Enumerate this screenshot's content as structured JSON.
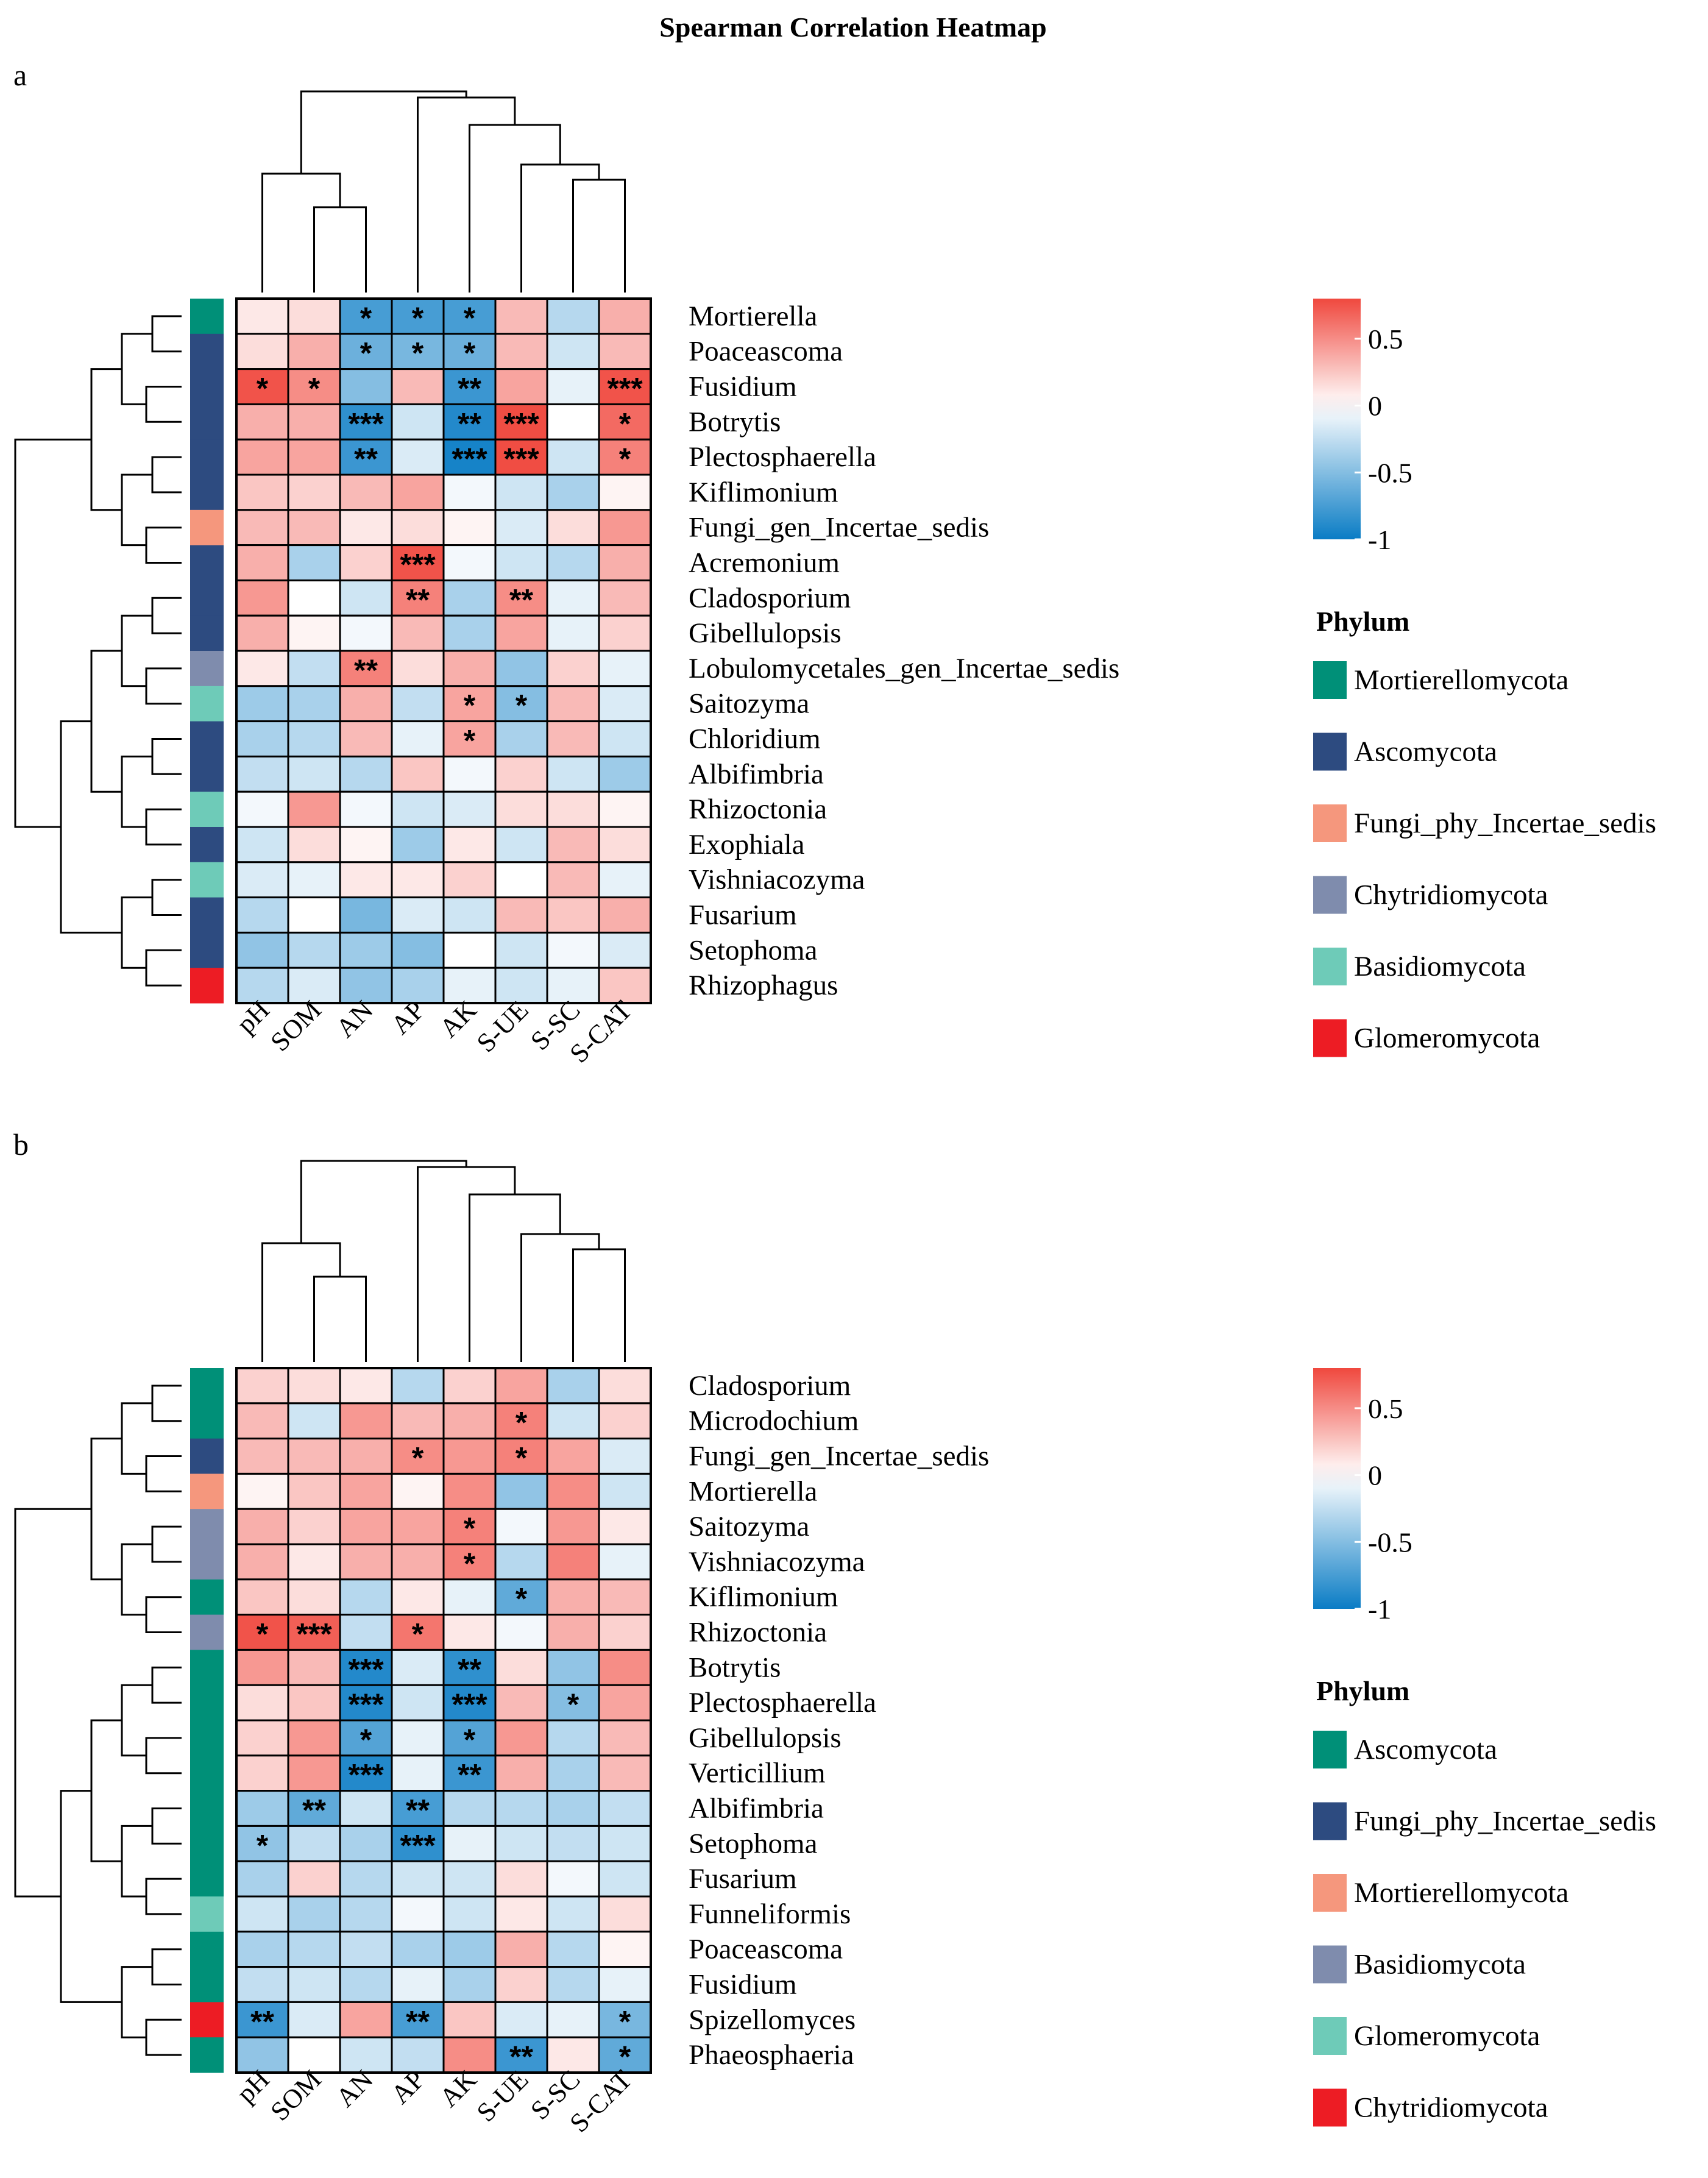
{
  "chart_data": {
    "type": "heatmap",
    "title": "Spearman Correlation Heatmap",
    "color_scale": {
      "min": -1,
      "max": 0.8,
      "ticks": [
        0.5,
        0,
        -0.5,
        -1
      ],
      "tick_labels": [
        "0.5",
        "0",
        "-0.5",
        "-1"
      ],
      "low_color": "#0a7cc5",
      "mid_color": "#ffffff",
      "high_color": "#f0483e"
    },
    "legend_title": "Phylum",
    "panels": [
      {
        "label": "a",
        "columns": [
          "pH",
          "SOM",
          "AN",
          "AP",
          "AK",
          "S-UE",
          "S-SC",
          "S-CAT"
        ],
        "rows": [
          "Mortierella",
          "Poaceascoma",
          "Fusidium",
          "Botrytis",
          "Plectosphaerella",
          "Kiflimonium",
          "Fungi_gen_Incertae_sedis",
          "Acremonium",
          "Cladosporium",
          "Gibellulopsis",
          "Lobulomycetales_gen_Incertae_sedis",
          "Saitozyma",
          "Chloridium",
          "Albifimbria",
          "Rhizoctonia",
          "Exophiala",
          "Vishniacozyma",
          "Fusarium",
          "Setophoma",
          "Rhizophagus"
        ],
        "row_phylum": [
          0,
          1,
          1,
          1,
          1,
          1,
          2,
          1,
          1,
          1,
          3,
          4,
          1,
          1,
          4,
          1,
          4,
          1,
          1,
          5
        ],
        "phyla": [
          {
            "name": "Mortierellomycota",
            "color": "#009078"
          },
          {
            "name": "Ascomycota",
            "color": "#2d4b80"
          },
          {
            "name": "Fungi_phy_Incertae_sedis",
            "color": "#f5977d"
          },
          {
            "name": "Chytridiomycota",
            "color": "#7f8cad"
          },
          {
            "name": "Basidiomycota",
            "color": "#6ecbb8"
          },
          {
            "name": "Glomeromycota",
            "color": "#ed1c24"
          }
        ],
        "values": [
          [
            0.1,
            0.15,
            -0.75,
            -0.75,
            -0.75,
            0.3,
            -0.3,
            0.35
          ],
          [
            0.15,
            0.35,
            -0.6,
            -0.55,
            -0.6,
            0.3,
            -0.2,
            0.3
          ],
          [
            0.75,
            0.5,
            -0.5,
            0.3,
            -0.8,
            0.4,
            -0.1,
            0.75
          ],
          [
            0.35,
            0.35,
            -0.85,
            -0.2,
            -0.9,
            0.78,
            0.0,
            0.65
          ],
          [
            0.4,
            0.4,
            -0.8,
            -0.15,
            -0.95,
            0.78,
            -0.2,
            0.55
          ],
          [
            0.25,
            0.2,
            0.3,
            0.4,
            -0.05,
            -0.2,
            -0.35,
            0.05
          ],
          [
            0.3,
            0.3,
            0.1,
            0.15,
            0.05,
            -0.15,
            0.15,
            0.45
          ],
          [
            0.35,
            -0.35,
            0.2,
            0.75,
            -0.05,
            -0.2,
            -0.3,
            0.35
          ],
          [
            0.45,
            0.0,
            -0.2,
            0.55,
            -0.35,
            0.5,
            -0.1,
            0.3
          ],
          [
            0.35,
            0.05,
            -0.05,
            0.3,
            -0.35,
            0.4,
            -0.1,
            0.2
          ],
          [
            0.1,
            -0.25,
            0.55,
            0.15,
            0.35,
            -0.45,
            0.2,
            -0.1
          ],
          [
            -0.4,
            -0.35,
            0.35,
            -0.25,
            0.4,
            -0.5,
            0.3,
            -0.15
          ],
          [
            -0.35,
            -0.3,
            0.3,
            -0.1,
            0.4,
            -0.35,
            0.3,
            -0.2
          ],
          [
            -0.25,
            -0.2,
            -0.3,
            0.25,
            -0.05,
            0.2,
            -0.2,
            -0.4
          ],
          [
            -0.05,
            0.45,
            -0.05,
            -0.2,
            -0.15,
            0.15,
            0.15,
            0.05
          ],
          [
            -0.2,
            0.15,
            0.05,
            -0.4,
            0.1,
            -0.2,
            0.3,
            0.15
          ],
          [
            -0.15,
            -0.1,
            0.1,
            0.1,
            0.2,
            0.0,
            0.3,
            -0.1
          ],
          [
            -0.3,
            0.0,
            -0.55,
            -0.15,
            -0.2,
            0.3,
            0.25,
            0.35
          ],
          [
            -0.45,
            -0.3,
            -0.4,
            -0.5,
            0.0,
            -0.2,
            -0.05,
            -0.15
          ],
          [
            -0.3,
            -0.15,
            -0.45,
            -0.35,
            -0.1,
            -0.2,
            -0.1,
            0.25
          ]
        ],
        "stars": [
          [
            "",
            "",
            "*",
            "*",
            "*",
            "",
            "",
            ""
          ],
          [
            "",
            "",
            "*",
            "*",
            "*",
            "",
            "",
            ""
          ],
          [
            "*",
            "*",
            "",
            "",
            "**",
            "",
            "",
            "***"
          ],
          [
            "",
            "",
            "***",
            "",
            "**",
            "***",
            "",
            "*"
          ],
          [
            "",
            "",
            "**",
            "",
            "***",
            "***",
            "",
            "*"
          ],
          [
            "",
            "",
            "",
            "",
            "",
            "",
            "",
            ""
          ],
          [
            "",
            "",
            "",
            "",
            "",
            "",
            "",
            ""
          ],
          [
            "",
            "",
            "",
            "***",
            "",
            "",
            "",
            ""
          ],
          [
            "",
            "",
            "",
            "**",
            "",
            "**",
            "",
            ""
          ],
          [
            "",
            "",
            "",
            "",
            "",
            "",
            "",
            ""
          ],
          [
            "",
            "",
            "**",
            "",
            "",
            "",
            "",
            ""
          ],
          [
            "",
            "",
            "",
            "",
            "*",
            "*",
            "",
            ""
          ],
          [
            "",
            "",
            "",
            "",
            "*",
            "",
            "",
            ""
          ],
          [
            "",
            "",
            "",
            "",
            "",
            "",
            "",
            ""
          ],
          [
            "",
            "",
            "",
            "",
            "",
            "",
            "",
            ""
          ],
          [
            "",
            "",
            "",
            "",
            "",
            "",
            "",
            ""
          ],
          [
            "",
            "",
            "",
            "",
            "",
            "",
            "",
            ""
          ],
          [
            "",
            "",
            "",
            "",
            "",
            "",
            "",
            ""
          ],
          [
            "",
            "",
            "",
            "",
            "",
            "",
            "",
            ""
          ],
          [
            "",
            "",
            "",
            "",
            "",
            "",
            "",
            ""
          ]
        ]
      },
      {
        "label": "b",
        "columns": [
          "pH",
          "SOM",
          "AN",
          "AP",
          "AK",
          "S-UE",
          "S-SC",
          "S-CAT"
        ],
        "rows": [
          "Cladosporium",
          "Microdochium",
          "Fungi_gen_Incertae_sedis",
          "Mortierella",
          "Saitozyma",
          "Vishniacozyma",
          "Kiflimonium",
          "Rhizoctonia",
          "Botrytis",
          "Plectosphaerella",
          "Gibellulopsis",
          "Verticillium",
          "Albifimbria",
          "Setophoma",
          "Fusarium",
          "Funneliformis",
          "Poaceascoma",
          "Fusidium",
          "Spizellomyces",
          "Phaeosphaeria"
        ],
        "row_phylum": [
          0,
          0,
          1,
          2,
          3,
          3,
          0,
          3,
          0,
          0,
          0,
          0,
          0,
          0,
          0,
          4,
          0,
          0,
          5,
          0
        ],
        "phyla": [
          {
            "name": "Ascomycota",
            "color": "#009078"
          },
          {
            "name": "Fungi_phy_Incertae_sedis",
            "color": "#2d4b80"
          },
          {
            "name": "Mortierellomycota",
            "color": "#f5977d"
          },
          {
            "name": "Basidiomycota",
            "color": "#7f8cad"
          },
          {
            "name": "Glomeromycota",
            "color": "#6ecbb8"
          },
          {
            "name": "Chytridiomycota",
            "color": "#ed1c24"
          }
        ],
        "values": [
          [
            0.2,
            0.15,
            0.1,
            -0.3,
            0.2,
            0.4,
            -0.35,
            0.15
          ],
          [
            0.3,
            -0.2,
            0.45,
            0.3,
            0.35,
            0.55,
            -0.2,
            0.2
          ],
          [
            0.3,
            0.3,
            0.35,
            0.5,
            0.45,
            0.55,
            0.4,
            -0.15
          ],
          [
            0.05,
            0.25,
            0.4,
            0.05,
            0.5,
            -0.45,
            0.5,
            -0.2
          ],
          [
            0.35,
            0.2,
            0.4,
            0.4,
            0.55,
            -0.05,
            0.45,
            0.1
          ],
          [
            0.35,
            0.1,
            0.35,
            0.35,
            0.55,
            -0.3,
            0.55,
            -0.1
          ],
          [
            0.25,
            0.15,
            -0.3,
            0.1,
            -0.1,
            -0.65,
            0.35,
            0.3
          ],
          [
            0.75,
            0.7,
            -0.25,
            0.6,
            0.1,
            -0.05,
            0.35,
            0.2
          ],
          [
            0.45,
            0.3,
            -0.9,
            -0.15,
            -0.85,
            0.15,
            -0.45,
            0.5
          ],
          [
            0.15,
            0.25,
            -0.9,
            -0.2,
            -0.9,
            0.3,
            -0.5,
            0.4
          ],
          [
            0.2,
            0.45,
            -0.7,
            -0.1,
            -0.7,
            0.45,
            -0.3,
            0.3
          ],
          [
            0.2,
            0.45,
            -0.9,
            -0.1,
            -0.8,
            0.35,
            -0.35,
            0.3
          ],
          [
            -0.4,
            -0.65,
            -0.2,
            -0.75,
            -0.3,
            -0.3,
            -0.35,
            -0.25
          ],
          [
            -0.45,
            -0.25,
            -0.35,
            -0.85,
            -0.1,
            -0.2,
            -0.25,
            -0.2
          ],
          [
            -0.35,
            0.2,
            -0.3,
            -0.2,
            -0.2,
            0.15,
            -0.05,
            -0.2
          ],
          [
            -0.2,
            -0.35,
            -0.3,
            -0.05,
            -0.2,
            0.1,
            -0.2,
            0.15
          ],
          [
            -0.35,
            -0.3,
            -0.25,
            -0.35,
            -0.4,
            0.35,
            -0.3,
            0.05
          ],
          [
            -0.25,
            -0.2,
            -0.3,
            -0.1,
            -0.35,
            0.2,
            -0.3,
            -0.1
          ],
          [
            -0.8,
            -0.15,
            0.4,
            -0.75,
            0.25,
            -0.15,
            -0.1,
            -0.55
          ],
          [
            -0.45,
            0.0,
            -0.2,
            -0.25,
            0.5,
            -0.8,
            0.1,
            -0.65
          ]
        ],
        "stars": [
          [
            "",
            "",
            "",
            "",
            "",
            "",
            "",
            ""
          ],
          [
            "",
            "",
            "",
            "",
            "",
            "*",
            "",
            ""
          ],
          [
            "",
            "",
            "",
            "*",
            "",
            "*",
            "",
            ""
          ],
          [
            "",
            "",
            "",
            "",
            "",
            "",
            "",
            ""
          ],
          [
            "",
            "",
            "",
            "",
            "*",
            "",
            "",
            ""
          ],
          [
            "",
            "",
            "",
            "",
            "*",
            "",
            "",
            ""
          ],
          [
            "",
            "",
            "",
            "",
            "",
            "*",
            "",
            ""
          ],
          [
            "*",
            "***",
            "",
            "*",
            "",
            "",
            "",
            ""
          ],
          [
            "",
            "",
            "***",
            "",
            "**",
            "",
            "",
            ""
          ],
          [
            "",
            "",
            "***",
            "",
            "***",
            "",
            "*",
            ""
          ],
          [
            "",
            "",
            "*",
            "",
            "*",
            "",
            "",
            ""
          ],
          [
            "",
            "",
            "***",
            "",
            "**",
            "",
            "",
            ""
          ],
          [
            "",
            "**",
            "",
            "**",
            "",
            "",
            "",
            ""
          ],
          [
            "*",
            "",
            "",
            "***",
            "",
            "",
            "",
            ""
          ],
          [
            "",
            "",
            "",
            "",
            "",
            "",
            "",
            ""
          ],
          [
            "",
            "",
            "",
            "",
            "",
            "",
            "",
            ""
          ],
          [
            "",
            "",
            "",
            "",
            "",
            "",
            "",
            ""
          ],
          [
            "",
            "",
            "",
            "",
            "",
            "",
            "",
            ""
          ],
          [
            "**",
            "",
            "",
            "**",
            "",
            "",
            "",
            "*"
          ],
          [
            "",
            "",
            "",
            "",
            "",
            "**",
            "",
            "*"
          ]
        ]
      }
    ]
  }
}
